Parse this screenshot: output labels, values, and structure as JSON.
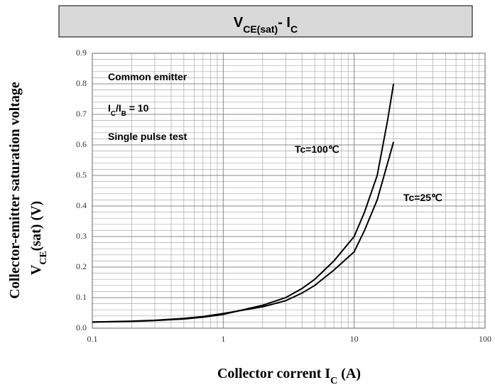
{
  "chart_data": {
    "type": "line",
    "title": [
      {
        "text": "V"
      },
      {
        "text": "CE(sat)",
        "sub": true
      },
      {
        "text": "- I"
      },
      {
        "text": "C",
        "sub": true
      }
    ],
    "ylabel": [
      [
        {
          "text": "Collector-emitter saturation voltage"
        }
      ],
      [
        {
          "text": "V"
        },
        {
          "text": "CE",
          "sub": true
        },
        {
          "text": "(sat) (V)"
        }
      ]
    ],
    "xlabel": [
      {
        "text": "Collector corrent I"
      },
      {
        "text": "C",
        "sub": true
      },
      {
        "text": " (A)"
      }
    ],
    "annotations": [
      [
        {
          "text": "Common emitter"
        }
      ],
      [
        {
          "text": "I"
        },
        {
          "text": "C",
          "sub": true
        },
        {
          "text": "/I"
        },
        {
          "text": "B",
          "sub": true
        },
        {
          "text": " = 10"
        }
      ],
      [
        {
          "text": "Single pulse test"
        }
      ],
      [
        {
          "text": "Tc=100℃"
        }
      ],
      [
        {
          "text": "Tc=25℃"
        }
      ]
    ],
    "x": [
      0.1,
      0.2,
      0.3,
      0.5,
      0.7,
      1,
      2,
      3,
      4,
      5,
      7,
      10,
      12,
      15,
      18,
      20
    ],
    "series": [
      {
        "name": "Tc=100℃",
        "color": "#000000",
        "values": [
          0.02,
          0.022,
          0.025,
          0.03,
          0.036,
          0.045,
          0.075,
          0.1,
          0.13,
          0.16,
          0.22,
          0.3,
          0.38,
          0.5,
          0.68,
          0.8
        ]
      },
      {
        "name": "Tc=25℃",
        "color": "#000000",
        "values": [
          0.02,
          0.023,
          0.026,
          0.032,
          0.038,
          0.048,
          0.07,
          0.09,
          0.115,
          0.14,
          0.19,
          0.25,
          0.32,
          0.42,
          0.54,
          0.61
        ]
      }
    ],
    "xlim": [
      0.1,
      100
    ],
    "xscale": "log",
    "xticks": [
      0.1,
      1,
      10,
      100
    ],
    "xminor_ticks": [
      0.2,
      0.3,
      0.4,
      0.5,
      0.6,
      0.7,
      0.8,
      0.9,
      2,
      3,
      4,
      5,
      6,
      7,
      8,
      9,
      20,
      30,
      40,
      50,
      60,
      70,
      80,
      90
    ],
    "ylim": [
      0,
      0.9
    ],
    "yticks": [
      {
        "value": 0,
        "label": "0.0"
      },
      0.1,
      0.2,
      0.3,
      0.4,
      0.5,
      0.6,
      0.7,
      0.8,
      0.9
    ],
    "yminor_ticks": [
      0.02,
      0.04,
      0.06,
      0.08,
      0.12,
      0.14,
      0.16,
      0.18,
      0.22,
      0.24,
      0.26,
      0.28,
      0.32,
      0.34,
      0.36,
      0.38,
      0.42,
      0.44,
      0.46,
      0.48,
      0.52,
      0.54,
      0.56,
      0.58,
      0.62,
      0.64,
      0.66,
      0.68,
      0.72,
      0.74,
      0.76,
      0.78,
      0.82,
      0.84,
      0.86,
      0.88
    ],
    "grid": true
  }
}
